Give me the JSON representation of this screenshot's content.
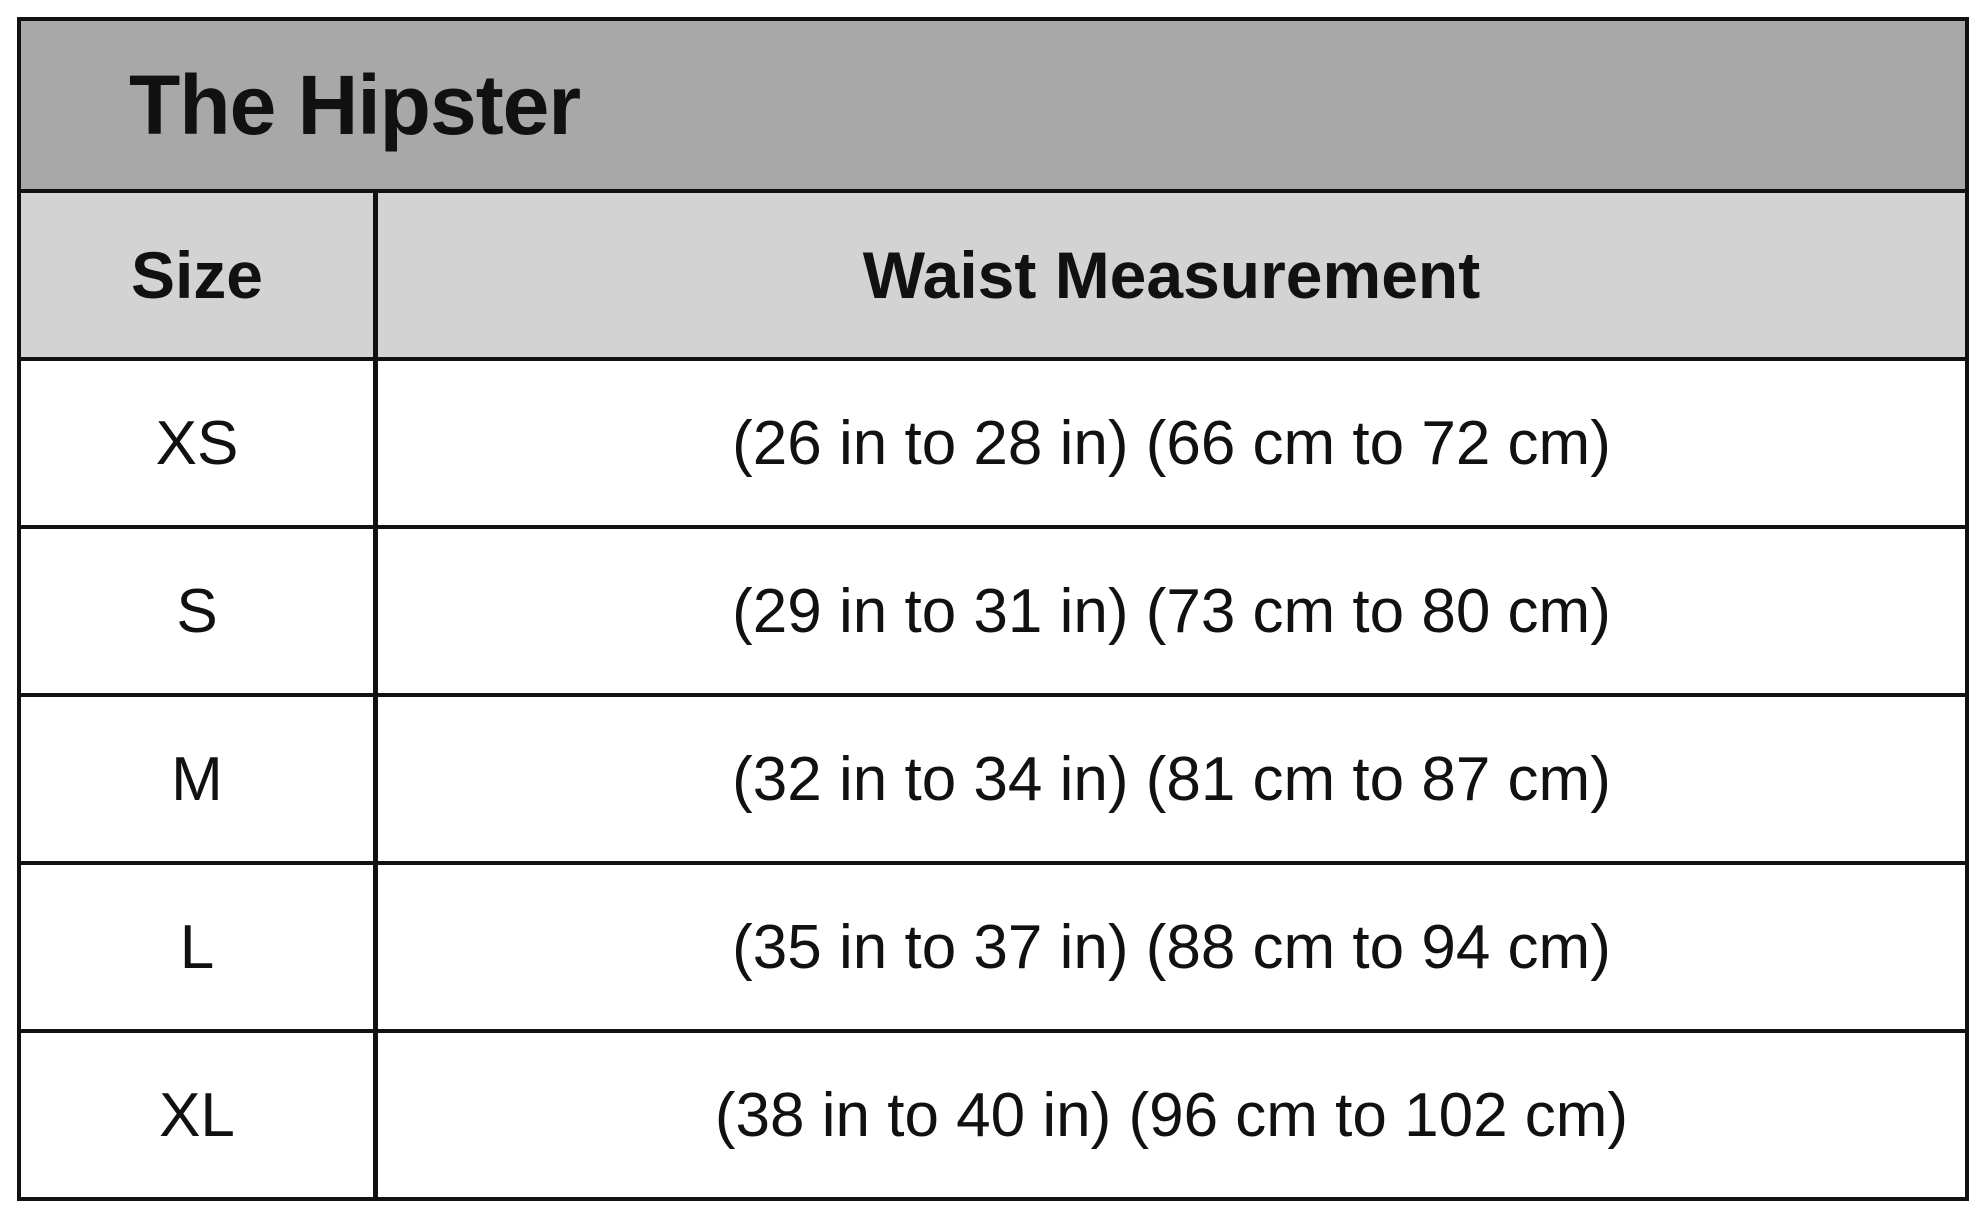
{
  "title": "The Hipster",
  "headers": [
    "Size",
    "Waist Measurement"
  ],
  "rows": [
    {
      "size": "XS",
      "waist": "(26 in to 28 in) (66 cm to 72 cm)"
    },
    {
      "size": "S",
      "waist": "(29 in to 31 in) (73 cm to 80 cm)"
    },
    {
      "size": "M",
      "waist": "(32 in to 34 in) (81 cm to 87 cm)"
    },
    {
      "size": "L",
      "waist": "(35 in to 37 in) (88 cm to 94 cm)"
    },
    {
      "size": "XL",
      "waist": "(38 in to 40 in) (96 cm to 102 cm)"
    }
  ]
}
